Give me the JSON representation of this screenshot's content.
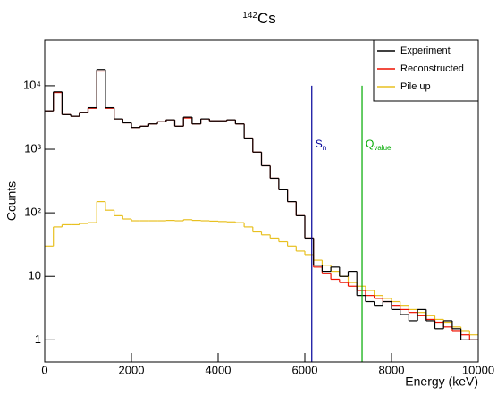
{
  "chart_data": {
    "type": "histogram",
    "title_superscript": "142",
    "title": "Cs",
    "xlabel": "Energy (keV)",
    "ylabel": "Counts",
    "bins": [
      0,
      200,
      400,
      600,
      800,
      1000,
      1200,
      1400,
      1600,
      1800,
      2000,
      2200,
      2400,
      2600,
      2800,
      3000,
      3200,
      3400,
      3600,
      3800,
      4000,
      4200,
      4400,
      4600,
      4800,
      5000,
      5200,
      5400,
      5600,
      5800,
      6000,
      6200,
      6400,
      6600,
      6800,
      7000,
      7200,
      7400,
      7600,
      7800,
      8000,
      8200,
      8400,
      8600,
      8800,
      9000,
      9200,
      9400,
      9600,
      9800,
      10000
    ],
    "series": [
      {
        "name": "Experiment",
        "color": "#000000",
        "values": [
          4000,
          8000,
          3500,
          3300,
          3800,
          4500,
          18000,
          4500,
          3000,
          2600,
          2200,
          2300,
          2500,
          2700,
          2900,
          2300,
          3200,
          2500,
          3000,
          2800,
          2800,
          2900,
          2500,
          1500,
          900,
          550,
          350,
          230,
          150,
          90,
          40,
          15,
          12,
          14,
          10,
          12,
          5,
          4,
          3.5,
          4,
          3,
          2.5,
          2,
          3,
          2,
          1.5,
          2,
          1.5,
          1,
          1
        ]
      },
      {
        "name": "Reconstructed",
        "color": "#ee1100",
        "values": [
          4000,
          7800,
          3500,
          3300,
          3800,
          4400,
          17000,
          4400,
          3000,
          2600,
          2200,
          2300,
          2500,
          2700,
          2900,
          2300,
          3100,
          2500,
          3000,
          2800,
          2800,
          2900,
          2500,
          1500,
          900,
          550,
          350,
          230,
          150,
          90,
          40,
          14,
          11,
          9,
          8,
          7,
          6,
          5,
          4.5,
          4,
          3.5,
          3,
          2.7,
          2.4,
          2.1,
          1.9,
          1.6,
          1.4,
          1.2,
          1
        ]
      },
      {
        "name": "Pile up",
        "color": "#e8c020",
        "values": [
          30,
          60,
          65,
          65,
          68,
          70,
          150,
          110,
          90,
          80,
          75,
          75,
          75,
          75,
          76,
          75,
          78,
          76,
          75,
          74,
          73,
          72,
          70,
          60,
          50,
          45,
          40,
          35,
          30,
          25,
          22,
          18,
          15,
          12,
          10,
          8,
          7,
          6,
          5,
          4.5,
          4,
          3.5,
          3,
          2.7,
          2.4,
          2.1,
          1.9,
          1.6,
          1.4,
          1.2
        ]
      }
    ],
    "markers": [
      {
        "label": "S",
        "sub": "n",
        "x": 6160,
        "top": 10000,
        "color": "#000099"
      },
      {
        "label": "Q",
        "sub": "value",
        "x": 7320,
        "top": 10000,
        "color": "#00aa00"
      }
    ],
    "xlim": [
      0,
      10000
    ],
    "xticks": [
      0,
      2000,
      4000,
      6000,
      8000,
      10000
    ],
    "ylim": [
      0.45,
      52000
    ],
    "log_y": true,
    "yticks": [
      1,
      10,
      {
        "value": 100,
        "label": "10²"
      },
      {
        "value": 1000,
        "label": "10³"
      },
      {
        "value": 10000,
        "label": "10⁴"
      }
    ],
    "legend": "upper right"
  }
}
